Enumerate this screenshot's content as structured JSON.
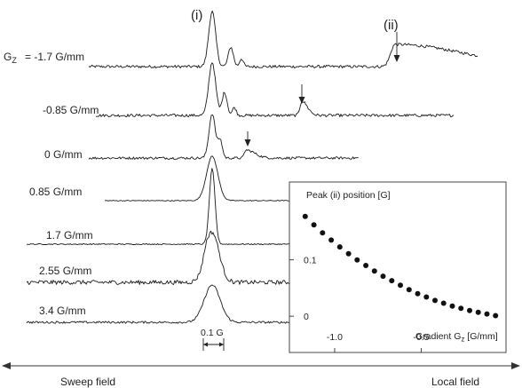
{
  "chart_data": {
    "type": "line",
    "peak_labels": {
      "i": "(i)",
      "ii": "(ii)"
    },
    "gradient_prefix": "G",
    "gradient_sub": "Z",
    "spectra": [
      {
        "label": "= -1.7 G/mm",
        "peak_ii_marked": true
      },
      {
        "label": "-0.85 G/mm",
        "peak_ii_marked": true
      },
      {
        "label": "0 G/mm",
        "peak_ii_marked": true
      },
      {
        "label": "0.85 G/mm",
        "peak_ii_marked": false
      },
      {
        "label": "1.7 G/mm",
        "peak_ii_marked": false
      },
      {
        "label": "2.55 G/mm",
        "peak_ii_marked": false
      },
      {
        "label": "3.4 G/mm",
        "peak_ii_marked": false
      }
    ],
    "scale_bar": "0.1 G",
    "bottom_axis": {
      "left_label": "Sweep field",
      "right_label": "Local field"
    },
    "inset": {
      "type": "scatter",
      "title": "Peak (ii) position [G]",
      "xlabel_prefix": "Gradient G",
      "xlabel_sub": "z",
      "xlabel_suffix": " [G/mm]",
      "xlim": [
        -1.2,
        -0.03
      ],
      "ylim": [
        -0.025,
        0.205
      ],
      "x_ticks": [
        -1.0,
        -0.5
      ],
      "x_tick_labels": [
        "-1.0",
        "-0.5"
      ],
      "y_ticks": [
        0,
        0.1
      ],
      "y_tick_labels": [
        "0",
        "0.1"
      ],
      "x": [
        -1.17,
        -1.12,
        -1.07,
        -1.02,
        -0.97,
        -0.92,
        -0.87,
        -0.82,
        -0.77,
        -0.72,
        -0.67,
        -0.62,
        -0.57,
        -0.52,
        -0.47,
        -0.42,
        -0.37,
        -0.32,
        -0.27,
        -0.22,
        -0.17,
        -0.12,
        -0.07
      ],
      "y": [
        0.177,
        0.162,
        0.148,
        0.135,
        0.123,
        0.111,
        0.1,
        0.09,
        0.08,
        0.071,
        0.063,
        0.055,
        0.047,
        0.04,
        0.034,
        0.028,
        0.023,
        0.018,
        0.014,
        0.01,
        0.007,
        0.004,
        0.001
      ]
    }
  }
}
